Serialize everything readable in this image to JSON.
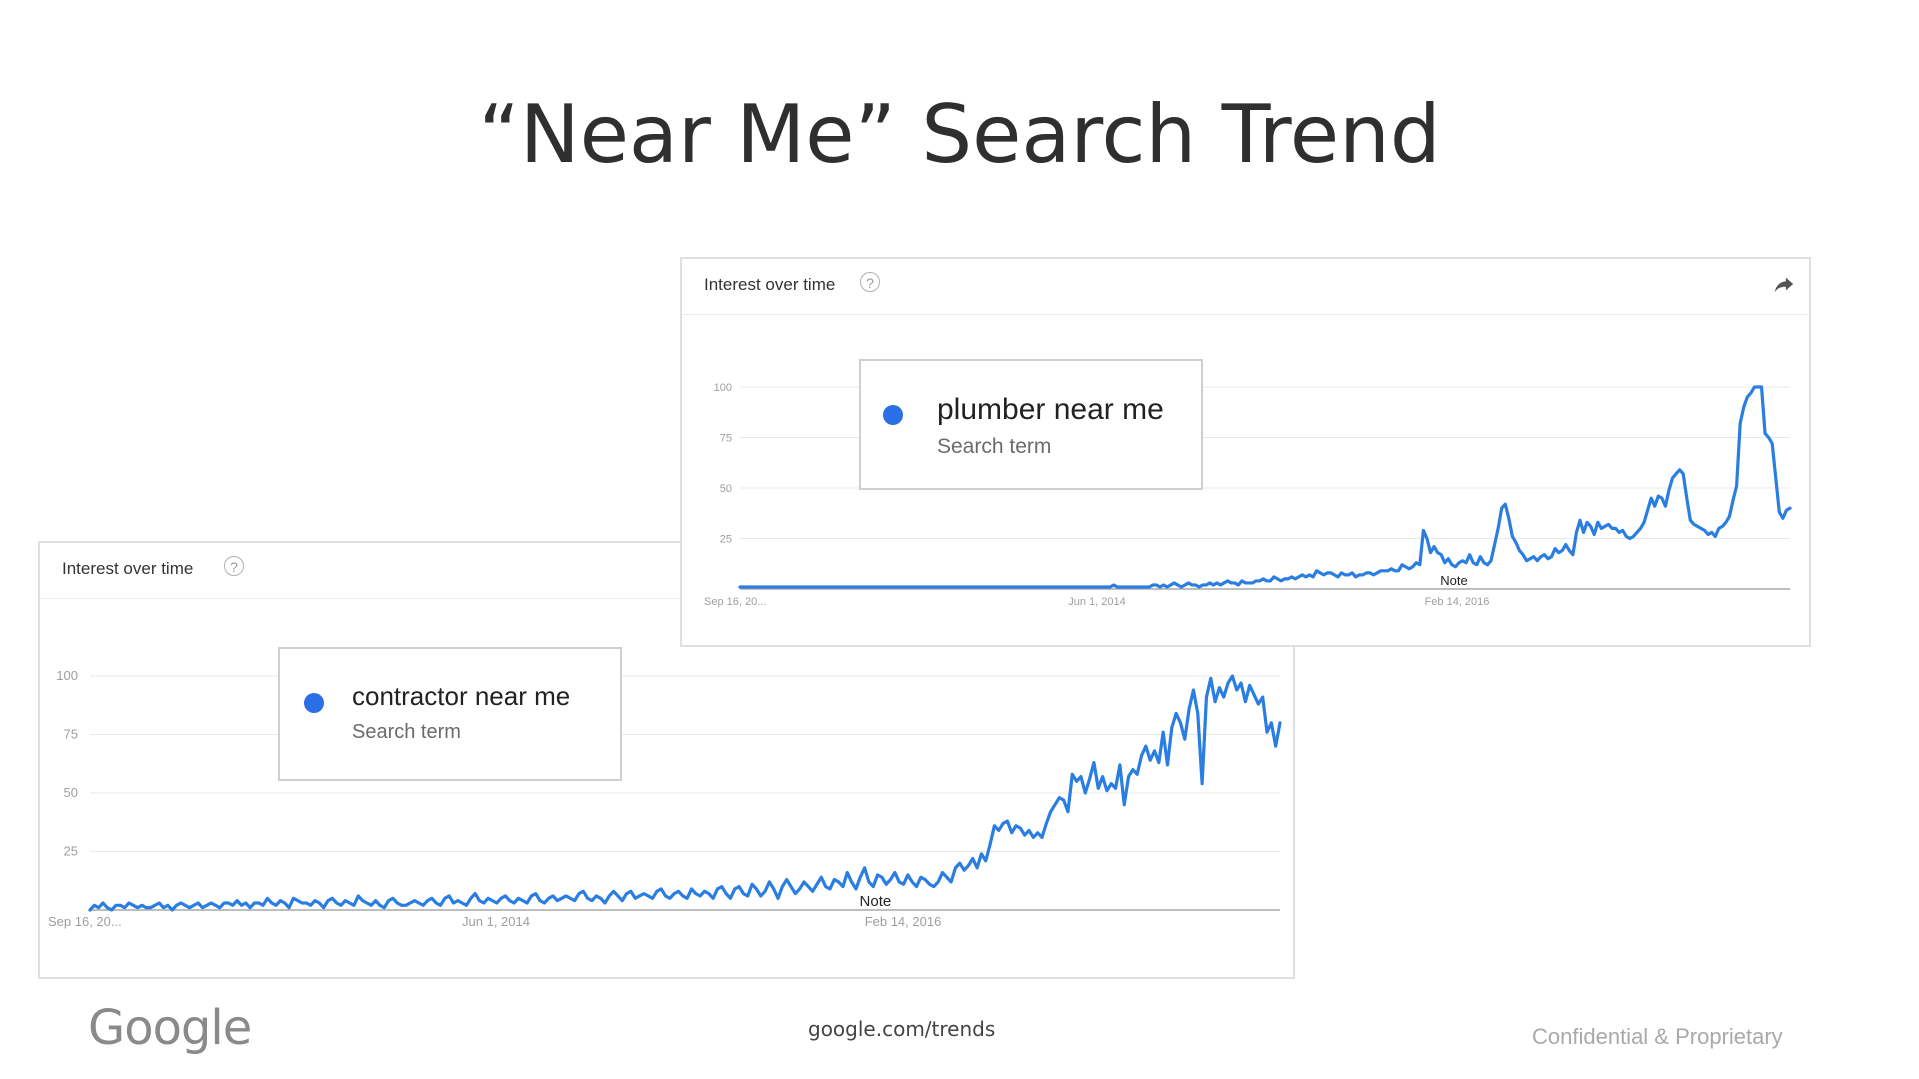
{
  "slide": {
    "title": "“Near Me” Search Trend",
    "logo_text": "Google",
    "source": "google.com/trends",
    "footer_note": "Confidential & Proprietary"
  },
  "colors": {
    "series": "#2a7de1",
    "legend_dot": "#2b6fe6",
    "grid": "#e8e8e8",
    "axis": "#a8a8a8",
    "tick_text": "#9e9e9e"
  },
  "icons": {
    "help": "help-circle-icon",
    "share": "share-arrow-icon"
  },
  "chart_data": [
    {
      "type": "line",
      "panel_title": "Interest over time",
      "help_glyph": "?",
      "title": "",
      "xlabel": "",
      "ylabel": "",
      "ylim": [
        0,
        100
      ],
      "y_ticks": [
        "100",
        "75",
        "50",
        "25"
      ],
      "x_tick_labels": [
        "Sep 16, 20...",
        "Jun 1, 2014",
        "Feb 14, 2016"
      ],
      "annotation": "Note",
      "annotation_x": 0.68,
      "grid": true,
      "series": [
        {
          "name": "plumber near me",
          "legend_subtitle": "Search term",
          "values": [
            1,
            1,
            1,
            1,
            1,
            1,
            1,
            1,
            1,
            1,
            1,
            1,
            1,
            1,
            1,
            1,
            1,
            1,
            1,
            1,
            1,
            1,
            1,
            1,
            1,
            1,
            1,
            1,
            1,
            1,
            1,
            1,
            1,
            1,
            1,
            1,
            1,
            1,
            1,
            1,
            1,
            1,
            1,
            1,
            1,
            1,
            1,
            1,
            1,
            1,
            1,
            1,
            1,
            1,
            1,
            1,
            1,
            1,
            1,
            1,
            1,
            1,
            1,
            1,
            1,
            1,
            1,
            1,
            1,
            1,
            1,
            1,
            1,
            1,
            1,
            1,
            1,
            1,
            1,
            1,
            1,
            1,
            1,
            1,
            1,
            1,
            1,
            1,
            1,
            1,
            1,
            1,
            1,
            1,
            1,
            1,
            1,
            1,
            1,
            1,
            1,
            1,
            1,
            1,
            1,
            2,
            1,
            1,
            1,
            1,
            1,
            1,
            1,
            1,
            1,
            1,
            2,
            2,
            1,
            2,
            1,
            2,
            3,
            2,
            1,
            2,
            3,
            2,
            2,
            1,
            2,
            2,
            3,
            2,
            3,
            2,
            3,
            4,
            3,
            3,
            2,
            4,
            3,
            3,
            3,
            4,
            4,
            5,
            4,
            4,
            6,
            5,
            4,
            5,
            5,
            6,
            5,
            6,
            7,
            6,
            7,
            6,
            9,
            8,
            7,
            8,
            8,
            7,
            6,
            8,
            7,
            7,
            8,
            6,
            7,
            7,
            8,
            8,
            7,
            8,
            9,
            9,
            9,
            10,
            9,
            9,
            12,
            11,
            10,
            11,
            13,
            12,
            29,
            25,
            18,
            21,
            18,
            17,
            13,
            15,
            12,
            11,
            13,
            14,
            13,
            17,
            13,
            12,
            16,
            13,
            12,
            14,
            22,
            30,
            40,
            42,
            35,
            26,
            23,
            19,
            17,
            14,
            15,
            16,
            14,
            16,
            17,
            15,
            16,
            20,
            18,
            19,
            22,
            19,
            17,
            28,
            34,
            28,
            33,
            31,
            27,
            33,
            30,
            31,
            32,
            30,
            30,
            28,
            29,
            26,
            25,
            26,
            28,
            30,
            33,
            39,
            45,
            41,
            46,
            45,
            41,
            49,
            55,
            57,
            59,
            57,
            45,
            34,
            32,
            31,
            30,
            29,
            27,
            28,
            26,
            30,
            31,
            33,
            36,
            44,
            51,
            82,
            90,
            95,
            97,
            100,
            100,
            100,
            77,
            75,
            72,
            55,
            38,
            35,
            39,
            40
          ]
        }
      ]
    },
    {
      "type": "line",
      "panel_title": "Interest over time",
      "help_glyph": "?",
      "title": "",
      "xlabel": "",
      "ylabel": "",
      "ylim": [
        0,
        100
      ],
      "y_ticks": [
        "100",
        "75",
        "50",
        "25"
      ],
      "x_tick_labels": [
        "Sep 16, 20...",
        "Jun 1, 2014",
        "Feb 14, 2016"
      ],
      "annotation": "Note",
      "annotation_x": 0.66,
      "grid": true,
      "series": [
        {
          "name": "contractor near me",
          "legend_subtitle": "Search term",
          "values": [
            0,
            2,
            1,
            3,
            1,
            0,
            2,
            2,
            1,
            3,
            2,
            1,
            2,
            1,
            1,
            2,
            3,
            1,
            2,
            0,
            2,
            3,
            2,
            1,
            2,
            3,
            1,
            2,
            3,
            2,
            1,
            3,
            3,
            2,
            4,
            2,
            3,
            1,
            3,
            3,
            2,
            5,
            3,
            2,
            4,
            3,
            1,
            5,
            4,
            3,
            3,
            2,
            4,
            3,
            1,
            4,
            5,
            3,
            2,
            4,
            3,
            2,
            6,
            4,
            3,
            2,
            4,
            2,
            1,
            4,
            5,
            3,
            2,
            2,
            3,
            4,
            3,
            2,
            4,
            5,
            3,
            2,
            5,
            6,
            3,
            4,
            3,
            2,
            5,
            7,
            4,
            3,
            5,
            4,
            3,
            5,
            6,
            4,
            3,
            5,
            4,
            3,
            6,
            7,
            4,
            3,
            5,
            6,
            4,
            5,
            6,
            5,
            4,
            7,
            8,
            5,
            4,
            6,
            5,
            3,
            6,
            8,
            6,
            4,
            7,
            8,
            5,
            6,
            7,
            6,
            5,
            8,
            9,
            6,
            5,
            7,
            8,
            6,
            5,
            9,
            7,
            6,
            8,
            7,
            5,
            9,
            10,
            7,
            5,
            9,
            10,
            7,
            6,
            11,
            9,
            6,
            8,
            12,
            9,
            5,
            10,
            13,
            10,
            7,
            9,
            12,
            10,
            8,
            11,
            14,
            10,
            9,
            13,
            12,
            10,
            16,
            12,
            9,
            14,
            18,
            12,
            10,
            15,
            14,
            11,
            13,
            16,
            12,
            11,
            15,
            12,
            10,
            14,
            13,
            11,
            10,
            12,
            16,
            14,
            12,
            18,
            20,
            17,
            19,
            22,
            18,
            24,
            21,
            28,
            36,
            34,
            37,
            38,
            33,
            36,
            35,
            32,
            34,
            31,
            33,
            31,
            37,
            42,
            45,
            48,
            47,
            42,
            58,
            55,
            57,
            50,
            56,
            63,
            52,
            57,
            51,
            54,
            52,
            62,
            45,
            57,
            60,
            58,
            66,
            70,
            64,
            68,
            63,
            76,
            62,
            78,
            84,
            80,
            73,
            86,
            94,
            84,
            54,
            91,
            99,
            89,
            95,
            91,
            97,
            100,
            94,
            97,
            89,
            96,
            92,
            88,
            91,
            76,
            80,
            70,
            80
          ]
        }
      ]
    }
  ]
}
